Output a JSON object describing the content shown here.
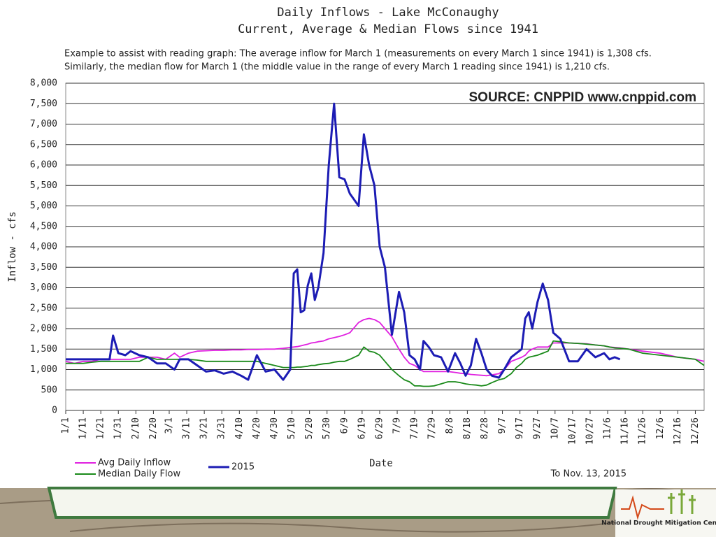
{
  "chart_data": {
    "type": "line",
    "title": "Daily Inflows - Lake McConaughy",
    "subtitle": "Current, Average & Median Flows since 1941",
    "annotations": [
      "Example to assist with reading graph:  The average inflow for March 1 (measurements on every March 1 since 1941) is 1,308 cfs.",
      "Similarly,  the median flow for March 1 (the middle value in the range of every March 1 reading since 1941)  is 1,210 cfs."
    ],
    "source": "SOURCE: CNPPID www.cnppid.com",
    "note": "To Nov. 13, 2015",
    "x_label": "Date",
    "y_label": "Inflow - cfs",
    "x": [
      "1/1",
      "1/6",
      "1/11",
      "1/16",
      "1/21",
      "1/26",
      "1/28",
      "1/31",
      "2/4",
      "2/7",
      "2/12",
      "2/17",
      "2/22",
      "2/27",
      "3/4",
      "3/7",
      "3/12",
      "3/17",
      "3/22",
      "3/27",
      "4/1",
      "4/6",
      "4/11",
      "4/15",
      "4/20",
      "4/25",
      "4/30",
      "5/5",
      "5/9",
      "5/11",
      "5/13",
      "5/15",
      "5/17",
      "5/19",
      "5/21",
      "5/23",
      "5/25",
      "5/28",
      "5/31",
      "6/3",
      "6/6",
      "6/9",
      "6/12",
      "6/17",
      "6/20",
      "6/23",
      "6/26",
      "6/29",
      "7/2",
      "7/6",
      "7/10",
      "7/13",
      "7/16",
      "7/19",
      "7/22",
      "7/24",
      "7/27",
      "7/30",
      "8/3",
      "8/7",
      "8/11",
      "8/14",
      "8/17",
      "8/20",
      "8/23",
      "8/26",
      "8/29",
      "9/1",
      "9/5",
      "9/8",
      "9/12",
      "9/15",
      "9/18",
      "9/20",
      "9/22",
      "9/24",
      "9/27",
      "9/30",
      "10/3",
      "10/6",
      "10/10",
      "10/15",
      "10/20",
      "10/25",
      "10/30",
      "11/4",
      "11/7",
      "11/10",
      "11/13",
      "11/18",
      "11/26",
      "12/6",
      "12/16",
      "12/26",
      "12/31"
    ],
    "series": [
      {
        "name": "Avg Daily Inflow",
        "color": "#e020e0",
        "values": [
          1200,
          1150,
          1200,
          1200,
          1250,
          1250,
          1250,
          1250,
          1250,
          1250,
          1300,
          1300,
          1300,
          1250,
          1400,
          1300,
          1400,
          1450,
          1460,
          1470,
          1470,
          1480,
          1480,
          1490,
          1490,
          1500,
          1500,
          1520,
          1540,
          1550,
          1560,
          1580,
          1600,
          1620,
          1650,
          1660,
          1680,
          1700,
          1750,
          1780,
          1810,
          1850,
          1900,
          2150,
          2220,
          2250,
          2220,
          2150,
          2000,
          1800,
          1500,
          1300,
          1150,
          1100,
          1000,
          950,
          950,
          950,
          950,
          950,
          930,
          910,
          900,
          880,
          870,
          860,
          850,
          870,
          900,
          1000,
          1200,
          1250,
          1300,
          1350,
          1450,
          1500,
          1550,
          1550,
          1550,
          1650,
          1650,
          1650,
          1640,
          1630,
          1600,
          1580,
          1550,
          1540,
          1530,
          1500,
          1450,
          1400,
          1300,
          1250,
          1200
        ]
      },
      {
        "name": "Median Daily Flow",
        "color": "#1a8a1a",
        "values": [
          1150,
          1150,
          1150,
          1180,
          1200,
          1200,
          1200,
          1200,
          1200,
          1200,
          1200,
          1300,
          1250,
          1250,
          1250,
          1250,
          1250,
          1230,
          1200,
          1200,
          1200,
          1200,
          1200,
          1200,
          1200,
          1150,
          1100,
          1050,
          1050,
          1050,
          1060,
          1060,
          1070,
          1080,
          1100,
          1100,
          1120,
          1140,
          1150,
          1180,
          1200,
          1200,
          1250,
          1350,
          1550,
          1450,
          1420,
          1350,
          1200,
          1000,
          850,
          750,
          700,
          600,
          600,
          590,
          590,
          600,
          650,
          700,
          700,
          680,
          650,
          630,
          620,
          600,
          620,
          680,
          750,
          780,
          900,
          1050,
          1150,
          1250,
          1300,
          1320,
          1350,
          1400,
          1450,
          1700,
          1680,
          1650,
          1640,
          1620,
          1600,
          1580,
          1550,
          1530,
          1520,
          1500,
          1400,
          1350,
          1300,
          1250,
          1100
        ]
      },
      {
        "name": "2015",
        "color": "#1c1cb4",
        "values": [
          1250,
          1250,
          1250,
          1250,
          1250,
          1250,
          1830,
          1400,
          1350,
          1450,
          1350,
          1300,
          1150,
          1150,
          1000,
          1250,
          1250,
          1100,
          950,
          980,
          900,
          950,
          850,
          750,
          1350,
          950,
          1000,
          750,
          1000,
          3350,
          3450,
          2400,
          2450,
          3050,
          3350,
          2700,
          3000,
          3850,
          6000,
          7500,
          5700,
          5650,
          5300,
          5000,
          6750,
          6000,
          5500,
          4000,
          3500,
          1850,
          2900,
          2400,
          1350,
          1250,
          1000,
          1700,
          1550,
          1350,
          1300,
          950,
          1400,
          1150,
          850,
          1100,
          1750,
          1400,
          1000,
          850,
          800,
          1000,
          1300,
          1400,
          1500,
          2250,
          2400,
          2000,
          2650,
          3100,
          2700,
          1900,
          1750,
          1200,
          1200,
          1500,
          1300,
          1400,
          1250,
          1300,
          1250,
          null,
          null,
          null,
          null,
          null,
          null
        ]
      }
    ],
    "xlim": [
      "1/1",
      "12/31"
    ],
    "xticks": [
      "1/1",
      "1/11",
      "1/21",
      "1/31",
      "2/10",
      "2/20",
      "3/1",
      "3/11",
      "3/21",
      "3/31",
      "4/10",
      "4/20",
      "4/30",
      "5/10",
      "5/20",
      "5/30",
      "6/9",
      "6/19",
      "6/29",
      "7/9",
      "7/19",
      "7/29",
      "8/8",
      "8/18",
      "8/28",
      "9/7",
      "9/17",
      "9/27",
      "10/7",
      "10/17",
      "10/27",
      "11/6",
      "11/16",
      "11/26",
      "12/6",
      "12/16",
      "12/26"
    ],
    "ylim": [
      0,
      8000
    ],
    "yticks": [
      0,
      500,
      {
        "value": 1000,
        "label": "1,000"
      },
      {
        "value": 1500,
        "label": "1,500"
      },
      {
        "value": 2000,
        "label": "2,000"
      },
      {
        "value": 2500,
        "label": "2,500"
      },
      {
        "value": 3000,
        "label": "3,000"
      },
      {
        "value": 3500,
        "label": "3,500"
      },
      {
        "value": 4000,
        "label": "4,000"
      },
      {
        "value": 4500,
        "label": "4,500"
      },
      {
        "value": 5000,
        "label": "5,000"
      },
      {
        "value": 5500,
        "label": "5,500"
      },
      {
        "value": 6000,
        "label": "6,000"
      },
      {
        "value": 6500,
        "label": "6,500"
      },
      {
        "value": 7000,
        "label": "7,000"
      },
      {
        "value": 7500,
        "label": "7,500"
      },
      {
        "value": 8000,
        "label": "8,000"
      }
    ],
    "grid": true
  },
  "branding": {
    "logo": "National Drought Mitigation Center"
  }
}
